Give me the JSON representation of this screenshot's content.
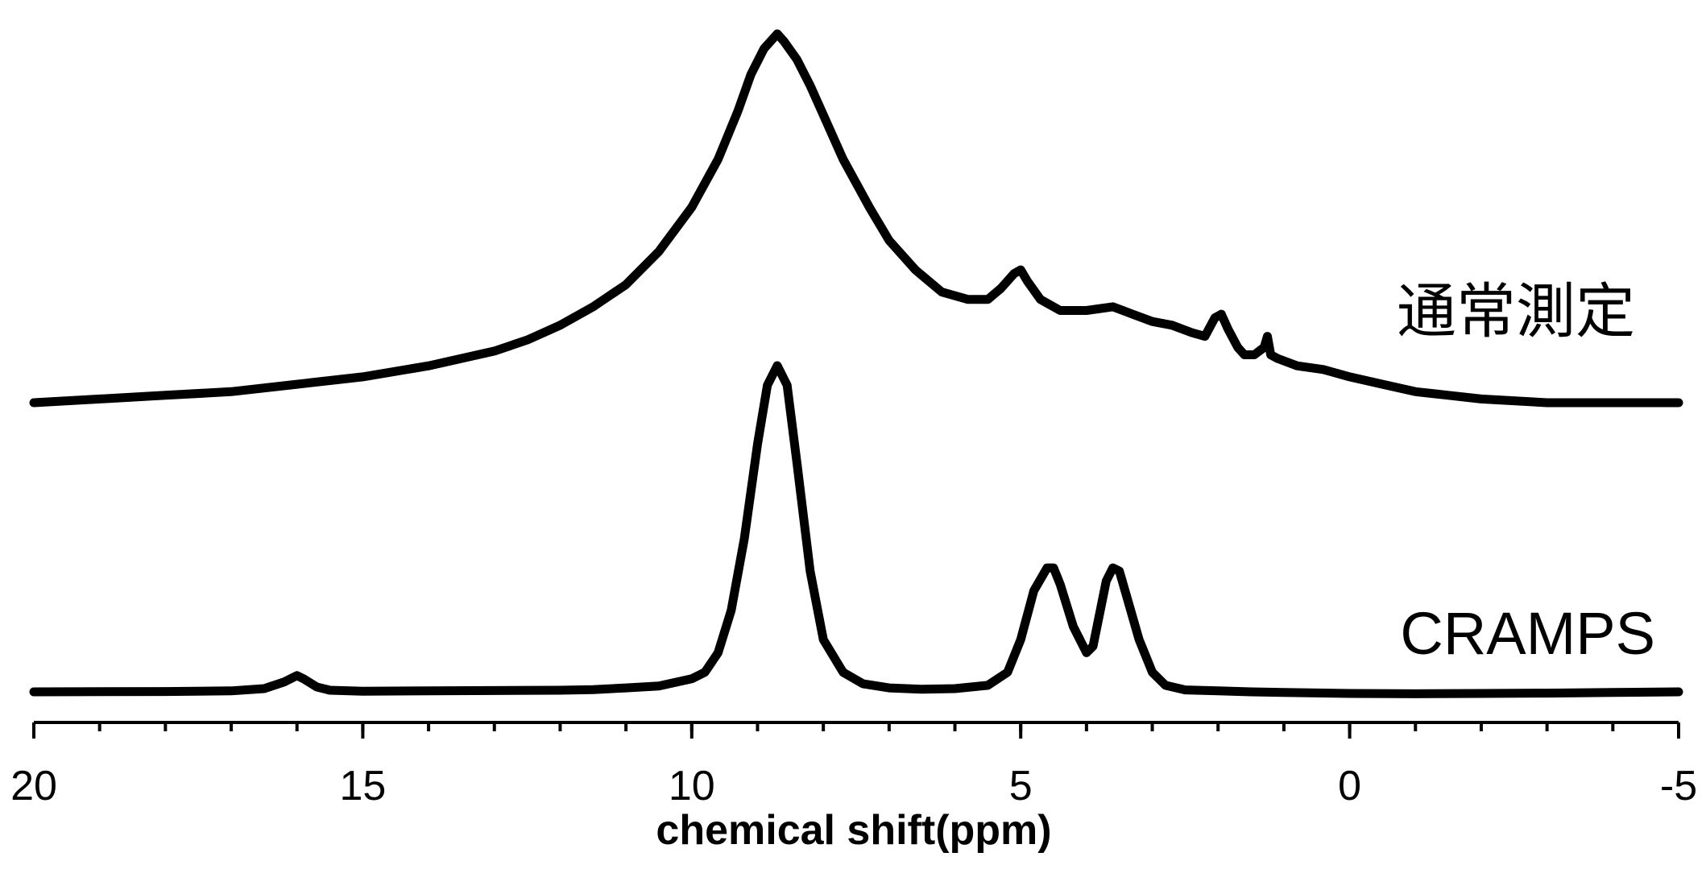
{
  "chart_data": {
    "type": "line",
    "title": "",
    "xlabel": "chemical shift(ppm)",
    "ylabel": "",
    "x_reversed": true,
    "xlim": [
      20,
      -5
    ],
    "x_ticks": [
      "20",
      "15",
      "10",
      "5",
      "0",
      "-5"
    ],
    "minor_tick_step": 1,
    "grid": false,
    "y_axis_shown": false,
    "series": [
      {
        "name": "通常測定",
        "role": "upper trace",
        "x": [
          20,
          19,
          18,
          17,
          16,
          15,
          14,
          13,
          12.5,
          12,
          11.5,
          11,
          10.5,
          10,
          9.6,
          9.3,
          9.1,
          8.9,
          8.7,
          8.6,
          8.4,
          8.2,
          8,
          7.7,
          7.3,
          7,
          6.6,
          6.2,
          5.8,
          5.5,
          5.3,
          5.1,
          5,
          4.9,
          4.7,
          4.4,
          4,
          3.6,
          3.3,
          3,
          2.7,
          2.4,
          2.2,
          2.05,
          1.95,
          1.85,
          1.7,
          1.6,
          1.45,
          1.3,
          1.25,
          1.2,
          1.1,
          0.8,
          0.4,
          0,
          -0.5,
          -1,
          -1.5,
          -2,
          -3,
          -4,
          -5
        ],
        "y": [
          0,
          0.01,
          0.02,
          0.03,
          0.05,
          0.07,
          0.1,
          0.14,
          0.17,
          0.21,
          0.26,
          0.32,
          0.41,
          0.53,
          0.66,
          0.79,
          0.89,
          0.96,
          1.0,
          0.98,
          0.93,
          0.86,
          0.78,
          0.66,
          0.53,
          0.44,
          0.36,
          0.3,
          0.28,
          0.28,
          0.31,
          0.35,
          0.36,
          0.33,
          0.28,
          0.25,
          0.25,
          0.26,
          0.24,
          0.22,
          0.21,
          0.19,
          0.18,
          0.23,
          0.24,
          0.2,
          0.15,
          0.13,
          0.13,
          0.15,
          0.18,
          0.13,
          0.12,
          0.1,
          0.09,
          0.07,
          0.05,
          0.03,
          0.02,
          0.01,
          0.0,
          0.0,
          0.0
        ]
      },
      {
        "name": "CRAMPS",
        "role": "lower trace",
        "x": [
          20,
          18,
          17,
          16.5,
          16.2,
          16.05,
          16.0,
          15.9,
          15.7,
          15.5,
          15,
          14,
          13,
          12,
          11.5,
          11,
          10.5,
          10,
          9.8,
          9.6,
          9.4,
          9.2,
          9.0,
          8.85,
          8.7,
          8.55,
          8.4,
          8.2,
          8.0,
          7.7,
          7.4,
          7,
          6.5,
          6,
          5.5,
          5.2,
          5.0,
          4.8,
          4.6,
          4.5,
          4.4,
          4.2,
          4.0,
          3.9,
          3.8,
          3.7,
          3.6,
          3.5,
          3.4,
          3.2,
          3.0,
          2.8,
          2.5,
          2,
          1.5,
          1,
          0,
          -1,
          -2,
          -3,
          -4,
          -5
        ],
        "y": [
          0,
          0.001,
          0.003,
          0.01,
          0.03,
          0.045,
          0.05,
          0.04,
          0.015,
          0.005,
          0.002,
          0.003,
          0.004,
          0.005,
          0.007,
          0.012,
          0.018,
          0.04,
          0.06,
          0.12,
          0.25,
          0.47,
          0.76,
          0.94,
          1.0,
          0.94,
          0.7,
          0.37,
          0.16,
          0.06,
          0.025,
          0.012,
          0.008,
          0.01,
          0.02,
          0.06,
          0.16,
          0.31,
          0.38,
          0.38,
          0.33,
          0.2,
          0.12,
          0.14,
          0.24,
          0.34,
          0.38,
          0.37,
          0.3,
          0.16,
          0.06,
          0.02,
          0.006,
          0.003,
          0.0,
          -0.002,
          -0.005,
          -0.006,
          -0.005,
          -0.004,
          -0.002,
          0.0
        ]
      }
    ]
  }
}
